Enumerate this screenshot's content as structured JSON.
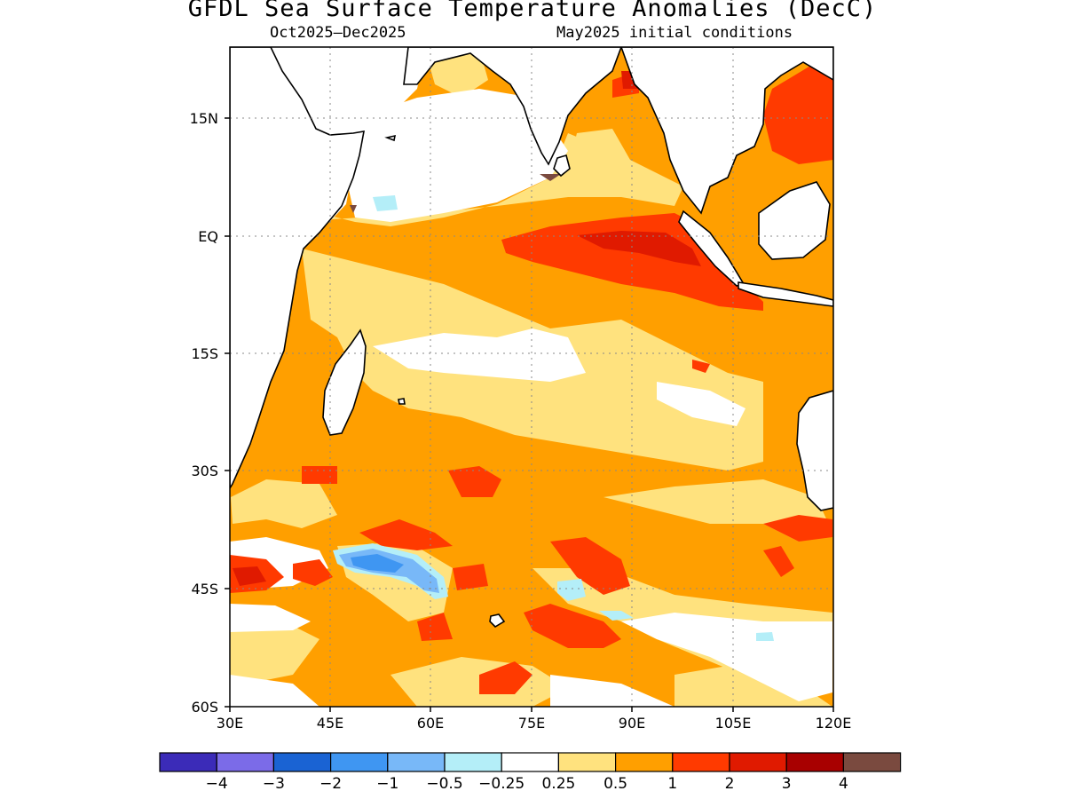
{
  "title": "GFDL Sea Surface Temperature Anomalies (DecC)",
  "subtitle_left": "Oct2025–Dec2025",
  "subtitle_right": "May2025 initial conditions",
  "map": {
    "lon_range": [
      30,
      120
    ],
    "lat_range": [
      -60,
      24
    ],
    "lon_ticks": [
      "30E",
      "45E",
      "60E",
      "75E",
      "90E",
      "105E",
      "120E"
    ],
    "lat_ticks": [
      "15N",
      "EQ",
      "15S",
      "30S",
      "45S",
      "60S"
    ],
    "grid": "dotted"
  },
  "colorbar": {
    "labels": [
      "−4",
      "−3",
      "−2",
      "−1",
      "−0.5",
      "−0.25",
      "0.25",
      "0.5",
      "1",
      "2",
      "3",
      "4"
    ],
    "colors": [
      "#3b2bb8",
      "#7b6be8",
      "#1a63d3",
      "#3f96f2",
      "#78b8f8",
      "#b4eef8",
      "#ffffff",
      "#ffe27e",
      "#ff9f00",
      "#ff3a00",
      "#e01a00",
      "#a80000",
      "#7a4a3f"
    ]
  },
  "colors": {
    "ocean_lt025": "#ffffff",
    "anom_025_05": "#ffe27e",
    "anom_05_1": "#ff9f00",
    "anom_1_2": "#ff3a00",
    "anom_2_3": "#e01a00",
    "anom_neg": "#78b8f8"
  }
}
